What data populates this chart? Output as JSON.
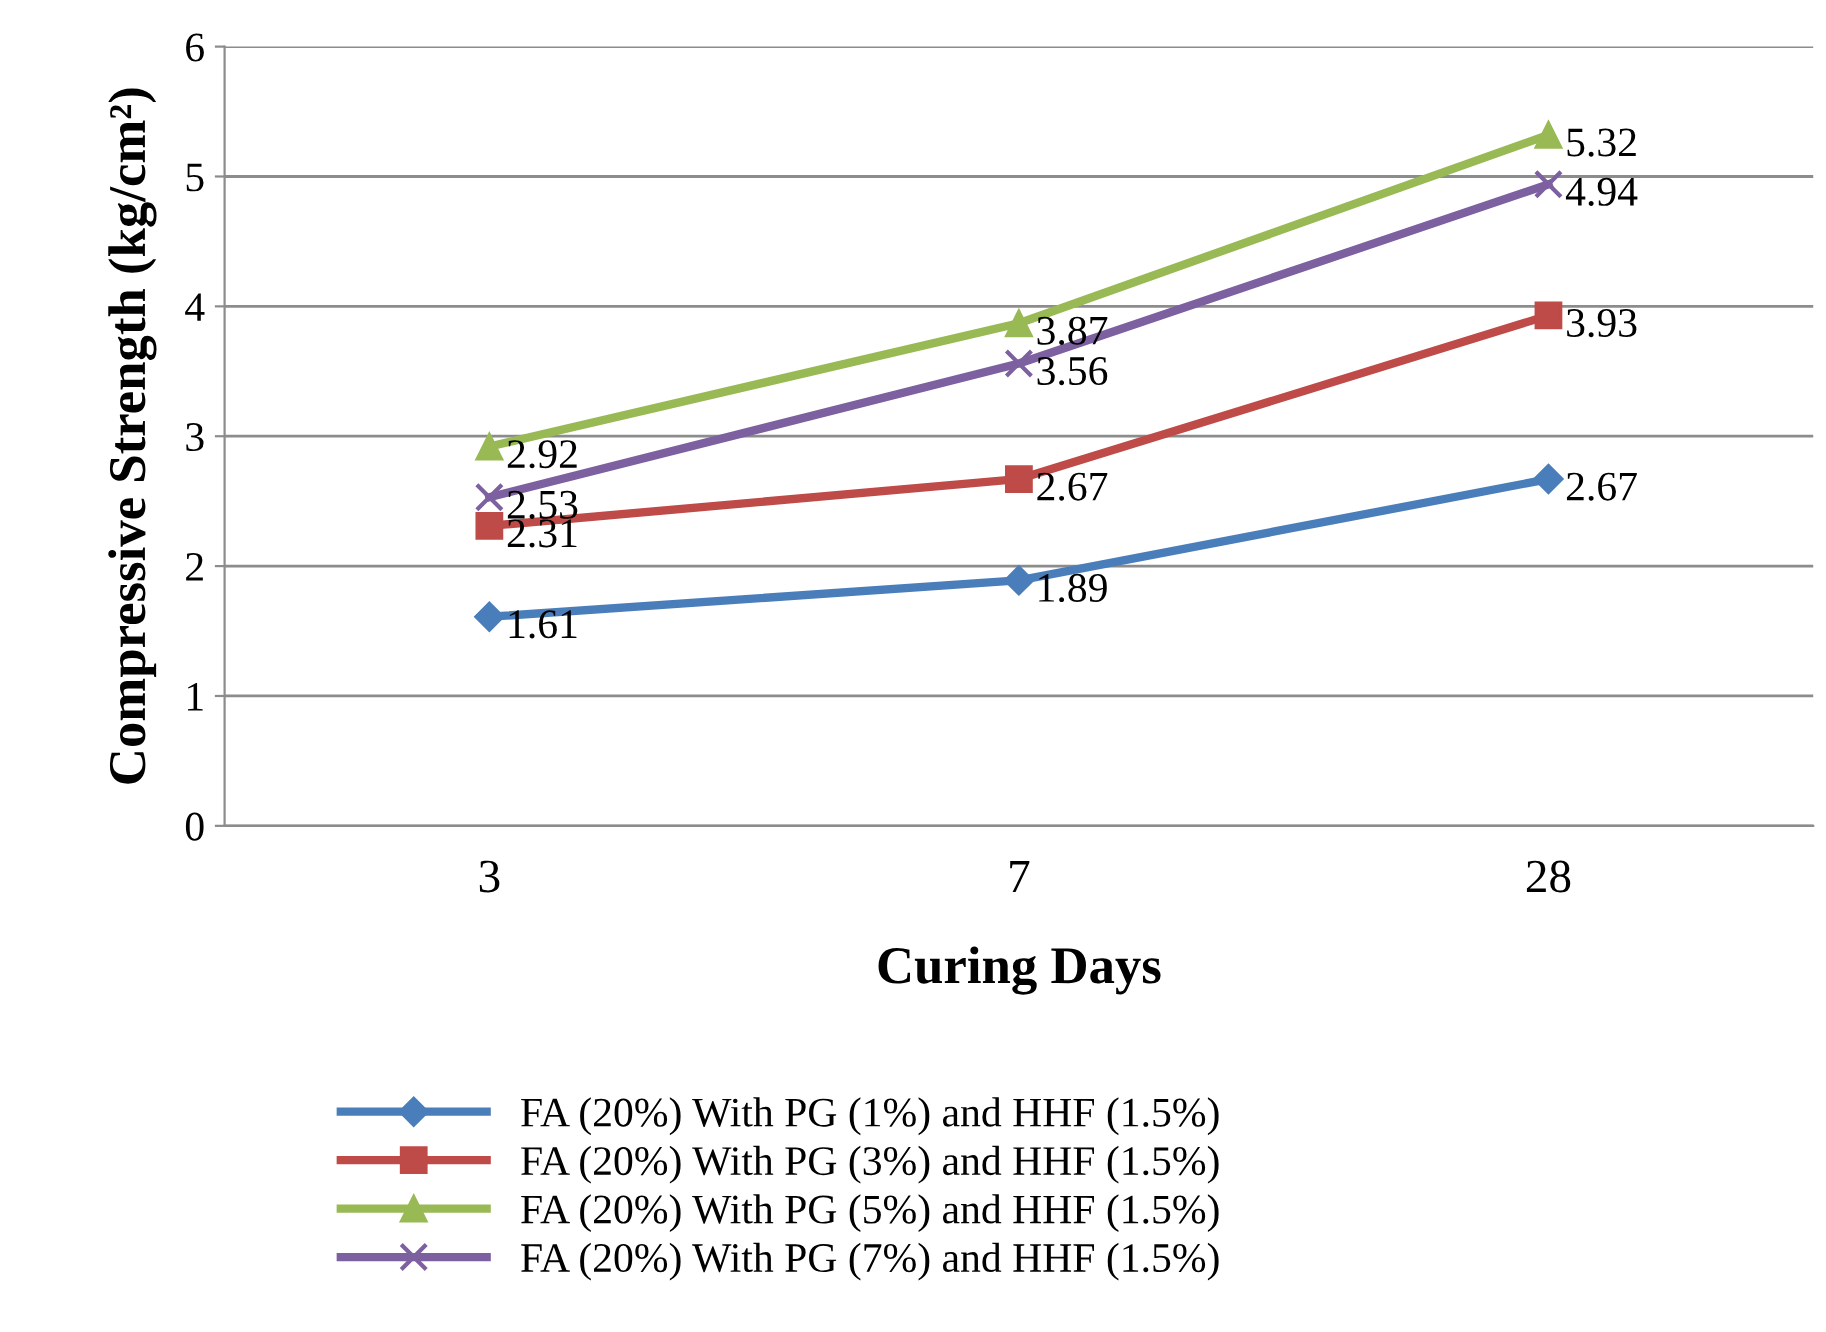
{
  "chart_data": {
    "type": "line",
    "xlabel": "Curing Days",
    "ylabel": "Compressive Strength (kg/cm²)",
    "categories": [
      "3",
      "7",
      "28"
    ],
    "series": [
      {
        "name": "FA (20%) With PG (1%) and HHF (1.5%)",
        "color": "#4a7ebb",
        "marker": "diamond",
        "values": [
          1.61,
          1.89,
          2.67
        ]
      },
      {
        "name": "FA (20%) With PG (3%) and HHF (1.5%)",
        "color": "#be4b48",
        "marker": "square",
        "values": [
          2.31,
          2.67,
          3.93
        ]
      },
      {
        "name": "FA (20%) With PG (5%) and HHF (1.5%)",
        "color": "#98b954",
        "marker": "triangle",
        "values": [
          2.92,
          3.87,
          5.32
        ]
      },
      {
        "name": "FA (20%) With PG (7%) and HHF (1.5%)",
        "color": "#7d60a0",
        "marker": "cross",
        "values": [
          2.53,
          3.56,
          4.94
        ]
      }
    ],
    "ylim": [
      0,
      6
    ],
    "yticks": [
      0,
      1,
      2,
      3,
      4,
      5,
      6
    ],
    "grid": "y",
    "legend": "bottom",
    "data_labels": true,
    "line_style": "solid"
  }
}
